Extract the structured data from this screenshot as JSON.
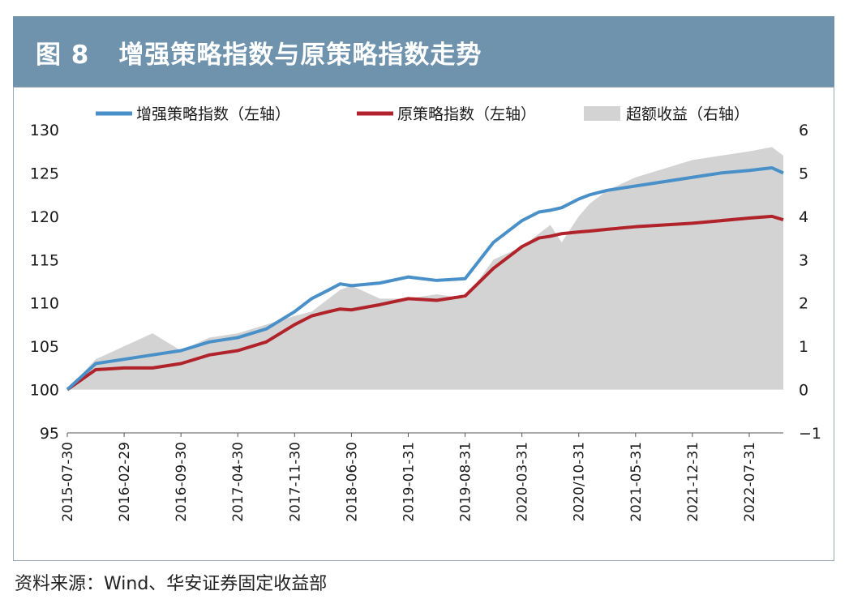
{
  "header": {
    "figure_no": "图 8",
    "title": "增强策略指数与原策略指数走势"
  },
  "source": "资料来源：Wind、华安证券固定收益部",
  "colors": {
    "enhanced": "#4a90c8",
    "original": "#b0232a",
    "excess": "#d3d3d3",
    "title_bg": "#6f93ad"
  },
  "chart_data": {
    "type": "line",
    "title": "增强策略指数与原策略指数走势",
    "legend": [
      "增强策略指数（左轴）",
      "原策略指数（左轴）",
      "超额收益（右轴）"
    ],
    "x_tick_labels": [
      "2015-07-30",
      "2016-02-29",
      "2016-09-30",
      "2017-04-30",
      "2017-11-30",
      "2018-06-30",
      "2019-01-31",
      "2019-08-31",
      "2020-03-31",
      "2020/10-31",
      "2021-05-31",
      "2021-12-31",
      "2022-07-31"
    ],
    "y_left": {
      "ticks": [
        "130",
        "125",
        "120",
        "115",
        "110",
        "105",
        "100",
        "95"
      ],
      "ylim": [
        95,
        130
      ]
    },
    "y_right": {
      "ticks": [
        "6",
        "5",
        "4",
        "3",
        "2",
        "1",
        "0",
        "−1"
      ],
      "ylim": [
        -1,
        6
      ]
    },
    "x": [
      0,
      0.5,
      1,
      1.5,
      2,
      2.5,
      3,
      3.5,
      4,
      4.3,
      4.6,
      4.8,
      5,
      5.5,
      6,
      6.5,
      7,
      7.5,
      8,
      8.3,
      8.5,
      8.7,
      9,
      9.2,
      9.5,
      10,
      10.5,
      11,
      11.5,
      12,
      12.4,
      12.6
    ],
    "series": [
      {
        "name": "增强策略指数（左轴）",
        "axis": "left",
        "values": [
          100,
          103,
          103.5,
          104,
          104.5,
          105.5,
          106,
          107,
          109,
          110.5,
          111.5,
          112.2,
          112.0,
          112.3,
          113,
          112.6,
          112.8,
          117,
          119.5,
          120.5,
          120.7,
          121,
          122,
          122.5,
          123,
          123.5,
          124,
          124.5,
          125,
          125.3,
          125.6,
          125.0
        ]
      },
      {
        "name": "原策略指数（左轴）",
        "axis": "left",
        "values": [
          100,
          102.3,
          102.5,
          102.5,
          103,
          104,
          104.5,
          105.5,
          107.5,
          108.5,
          109.0,
          109.3,
          109.2,
          109.8,
          110.5,
          110.3,
          110.8,
          114,
          116.5,
          117.5,
          117.7,
          118,
          118.2,
          118.3,
          118.5,
          118.8,
          119,
          119.2,
          119.5,
          119.8,
          120.0,
          119.6
        ]
      },
      {
        "name": "超额收益（右轴）",
        "axis": "right",
        "type": "area",
        "values": [
          0,
          0.7,
          1.0,
          1.3,
          0.9,
          1.2,
          1.3,
          1.5,
          1.7,
          1.8,
          2.1,
          2.3,
          2.4,
          2.1,
          2.1,
          2.2,
          2.1,
          3.0,
          3.3,
          3.6,
          3.8,
          3.4,
          4.0,
          4.3,
          4.6,
          4.9,
          5.1,
          5.3,
          5.4,
          5.5,
          5.6,
          5.4
        ]
      }
    ]
  }
}
